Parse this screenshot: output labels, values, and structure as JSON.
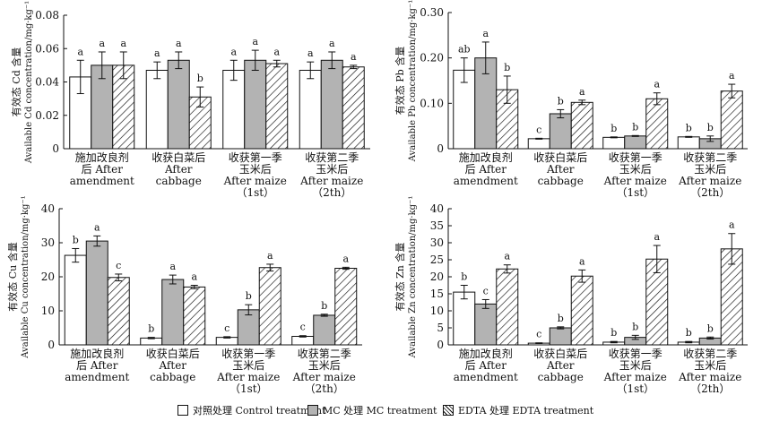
{
  "legend": {
    "control": "对照处理 Control treatment",
    "mc": "MC 处理 MC treatment",
    "edta": "EDTA 处理 EDTA treatment"
  },
  "colors": {
    "control": "#ffffff",
    "mc": "#b3b3b3",
    "edta": "hatched",
    "stroke": "#111111"
  },
  "chart_data": [
    {
      "type": "bar",
      "element": "Cd",
      "ylabel_cn": "有效态 Cd 含量",
      "ylabel_en": "Available Cd concentration/mg·kg⁻¹",
      "ylim": [
        0,
        0.08
      ],
      "yticks": [
        "0",
        "0.02",
        "0.04",
        "0.06",
        "0.08"
      ],
      "categories": [
        [
          "施加改良剂",
          "后 After",
          "amendment"
        ],
        [
          "收获白菜后",
          "After",
          "cabbage"
        ],
        [
          "收获第一季",
          "玉米后",
          "After maize",
          "（1st）"
        ],
        [
          "收获第二季",
          "玉米后",
          "After maize",
          "（2th）"
        ]
      ],
      "series": [
        {
          "key": "control",
          "values": [
            0.043,
            0.047,
            0.047,
            0.047
          ],
          "errors": [
            0.01,
            0.005,
            0.006,
            0.005
          ],
          "letters": [
            "a",
            "a",
            "a",
            "a"
          ]
        },
        {
          "key": "mc",
          "values": [
            0.05,
            0.053,
            0.053,
            0.053
          ],
          "errors": [
            0.008,
            0.005,
            0.006,
            0.005
          ],
          "letters": [
            "a",
            "a",
            "a",
            "a"
          ]
        },
        {
          "key": "edta",
          "values": [
            0.05,
            0.031,
            0.051,
            0.049
          ],
          "errors": [
            0.008,
            0.006,
            0.002,
            0.001
          ],
          "letters": [
            "a",
            "b",
            "a",
            "a"
          ]
        }
      ]
    },
    {
      "type": "bar",
      "element": "Pb",
      "ylabel_cn": "有效态 Pb 含量",
      "ylabel_en": "Available Pb concentration/mg·kg⁻¹",
      "ylim": [
        0,
        0.3
      ],
      "yticks": [
        "0",
        "0.10",
        "0.20",
        "0.30"
      ],
      "categories": [
        [
          "施加改良剂",
          "后 After",
          "amendment"
        ],
        [
          "收获白菜后",
          "After",
          "cabbage"
        ],
        [
          "收获第一季",
          "玉米后",
          "After maize",
          "（1st）"
        ],
        [
          "收获第二季",
          "玉米后",
          "After maize",
          "（2th）"
        ]
      ],
      "series": [
        {
          "key": "control",
          "values": [
            0.173,
            0.022,
            0.025,
            0.026
          ],
          "errors": [
            0.027,
            0.001,
            0.001,
            0.001
          ],
          "letters": [
            "ab",
            "c",
            "b",
            "b"
          ]
        },
        {
          "key": "mc",
          "values": [
            0.2,
            0.077,
            0.028,
            0.022
          ],
          "errors": [
            0.035,
            0.009,
            0.001,
            0.006
          ],
          "letters": [
            "a",
            "b",
            "b",
            "b"
          ]
        },
        {
          "key": "edta",
          "values": [
            0.13,
            0.102,
            0.11,
            0.127
          ],
          "errors": [
            0.03,
            0.005,
            0.013,
            0.015
          ],
          "letters": [
            "b",
            "a",
            "a",
            "a"
          ]
        }
      ]
    },
    {
      "type": "bar",
      "element": "Cu",
      "ylabel_cn": "有效态 Cu 含量",
      "ylabel_en": "Available Cu concentration/mg·kg⁻¹",
      "ylim": [
        0,
        40
      ],
      "yticks": [
        "0",
        "10",
        "20",
        "30",
        "40"
      ],
      "categories": [
        [
          "施加改良剂",
          "后 After",
          "amendment"
        ],
        [
          "收获白菜后",
          "After",
          "cabbage"
        ],
        [
          "收获第一季",
          "玉米后",
          "After maize",
          "（1st）"
        ],
        [
          "收获第二季",
          "玉米后",
          "After maize",
          "（2th）"
        ]
      ],
      "series": [
        {
          "key": "control",
          "values": [
            26.3,
            2.0,
            2.2,
            2.5
          ],
          "errors": [
            2.0,
            0.2,
            0.2,
            0.2
          ],
          "letters": [
            "b",
            "b",
            "c",
            "c"
          ]
        },
        {
          "key": "mc",
          "values": [
            30.5,
            19.2,
            10.3,
            8.7
          ],
          "errors": [
            1.5,
            1.3,
            1.5,
            0.3
          ],
          "letters": [
            "a",
            "a",
            "b",
            "b"
          ]
        },
        {
          "key": "edta",
          "values": [
            19.8,
            17.0,
            22.7,
            22.5
          ],
          "errors": [
            1.0,
            0.5,
            1.0,
            0.3
          ],
          "letters": [
            "c",
            "a",
            "a",
            "a"
          ]
        }
      ]
    },
    {
      "type": "bar",
      "element": "Zn",
      "ylabel_cn": "有效态 Zn 含量",
      "ylabel_en": "Available Zn concentration/mg·kg⁻¹",
      "ylim": [
        0,
        40
      ],
      "yticks": [
        "0",
        "5",
        "10",
        "15",
        "20",
        "25",
        "30",
        "35",
        "40"
      ],
      "categories": [
        [
          "施加改良剂",
          "后 After",
          "amendment"
        ],
        [
          "收获白菜后",
          "After",
          "cabbage"
        ],
        [
          "收获第一季",
          "玉米后",
          "After maize",
          "（1st）"
        ],
        [
          "收获第二季",
          "玉米后",
          "After maize",
          "（2th）"
        ]
      ],
      "series": [
        {
          "key": "control",
          "values": [
            15.5,
            0.5,
            0.8,
            0.8
          ],
          "errors": [
            2.0,
            0.1,
            0.2,
            0.2
          ],
          "letters": [
            "b",
            "c",
            "b",
            "b"
          ]
        },
        {
          "key": "mc",
          "values": [
            12.0,
            5.0,
            2.2,
            2.0
          ],
          "errors": [
            1.3,
            0.3,
            0.6,
            0.3
          ],
          "letters": [
            "c",
            "b",
            "b",
            "b"
          ]
        },
        {
          "key": "edta",
          "values": [
            22.3,
            20.2,
            25.2,
            28.2
          ],
          "errors": [
            1.2,
            1.8,
            4.0,
            4.5
          ],
          "letters": [
            "a",
            "a",
            "a",
            "a"
          ]
        }
      ]
    }
  ]
}
